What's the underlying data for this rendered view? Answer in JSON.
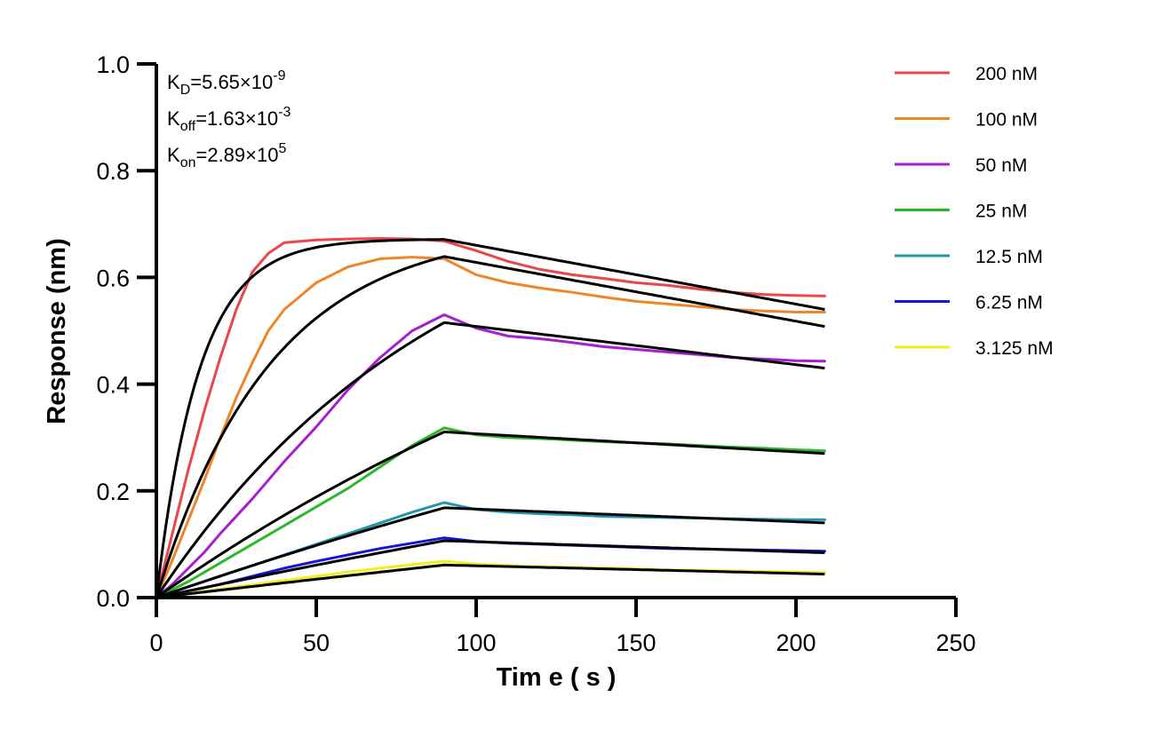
{
  "chart_data": {
    "type": "line",
    "title": "",
    "xlabel": "Tim e ( s )",
    "ylabel": "Response (nm)",
    "xlim": [
      0,
      250
    ],
    "ylim": [
      0,
      1.0
    ],
    "xticks": [
      "0",
      "50",
      "100",
      "150",
      "200",
      "250"
    ],
    "yticks": [
      "0.0",
      "0.2",
      "0.4",
      "0.6",
      "0.8",
      "1.0"
    ],
    "grid": false,
    "legend_position": "top-right",
    "association_end_time": 90,
    "end_time": 209,
    "kinetics": [
      {
        "id": "kd",
        "base": "K",
        "sub": "D",
        "main": "=5.65×10",
        "sup": "-9"
      },
      {
        "id": "koff",
        "base": "K",
        "sub": "off",
        "main": "=1.63×10",
        "sup": "-3"
      },
      {
        "id": "kon",
        "base": "K",
        "sub": "on",
        "main": "=2.89×10",
        "sup": "5"
      }
    ],
    "series": [
      {
        "name": "200 nM",
        "color": "#E8474C",
        "fit_plateau": 0.672,
        "fit_k": 0.075,
        "fit_end": 0.54,
        "points": [
          [
            0,
            0
          ],
          [
            5,
            0.12
          ],
          [
            10,
            0.24
          ],
          [
            15,
            0.35
          ],
          [
            20,
            0.45
          ],
          [
            25,
            0.54
          ],
          [
            30,
            0.61
          ],
          [
            35,
            0.645
          ],
          [
            40,
            0.665
          ],
          [
            50,
            0.67
          ],
          [
            60,
            0.672
          ],
          [
            70,
            0.673
          ],
          [
            80,
            0.672
          ],
          [
            90,
            0.668
          ],
          [
            100,
            0.65
          ],
          [
            110,
            0.63
          ],
          [
            120,
            0.615
          ],
          [
            130,
            0.605
          ],
          [
            140,
            0.598
          ],
          [
            150,
            0.59
          ],
          [
            160,
            0.585
          ],
          [
            170,
            0.578
          ],
          [
            180,
            0.572
          ],
          [
            190,
            0.568
          ],
          [
            200,
            0.566
          ],
          [
            209,
            0.565
          ]
        ]
      },
      {
        "name": "100 nM",
        "color": "#F0842A",
        "fit_plateau": 0.695,
        "fit_k": 0.028,
        "fit_end": 0.508,
        "points": [
          [
            0,
            0
          ],
          [
            5,
            0.07
          ],
          [
            10,
            0.145
          ],
          [
            15,
            0.22
          ],
          [
            20,
            0.3
          ],
          [
            25,
            0.375
          ],
          [
            30,
            0.44
          ],
          [
            35,
            0.5
          ],
          [
            40,
            0.54
          ],
          [
            50,
            0.59
          ],
          [
            60,
            0.62
          ],
          [
            70,
            0.635
          ],
          [
            80,
            0.638
          ],
          [
            90,
            0.635
          ],
          [
            100,
            0.605
          ],
          [
            110,
            0.59
          ],
          [
            120,
            0.58
          ],
          [
            130,
            0.572
          ],
          [
            140,
            0.563
          ],
          [
            150,
            0.555
          ],
          [
            160,
            0.55
          ],
          [
            170,
            0.545
          ],
          [
            180,
            0.54
          ],
          [
            190,
            0.537
          ],
          [
            200,
            0.535
          ],
          [
            209,
            0.535
          ]
        ]
      },
      {
        "name": "50 nM",
        "color": "#A71FCF",
        "fit_plateau": 0.82,
        "fit_k": 0.011,
        "fit_end": 0.43,
        "points": [
          [
            0,
            0
          ],
          [
            5,
            0.025
          ],
          [
            10,
            0.055
          ],
          [
            15,
            0.085
          ],
          [
            20,
            0.12
          ],
          [
            30,
            0.185
          ],
          [
            40,
            0.255
          ],
          [
            50,
            0.32
          ],
          [
            60,
            0.39
          ],
          [
            70,
            0.45
          ],
          [
            80,
            0.5
          ],
          [
            90,
            0.53
          ],
          [
            100,
            0.505
          ],
          [
            110,
            0.49
          ],
          [
            120,
            0.485
          ],
          [
            130,
            0.478
          ],
          [
            140,
            0.47
          ],
          [
            150,
            0.465
          ],
          [
            160,
            0.46
          ],
          [
            170,
            0.455
          ],
          [
            180,
            0.45
          ],
          [
            190,
            0.447
          ],
          [
            200,
            0.444
          ],
          [
            209,
            0.443
          ]
        ]
      },
      {
        "name": "25 nM",
        "color": "#2DB82A",
        "fit_plateau": 0.9,
        "fit_k": 0.0047,
        "fit_end": 0.27,
        "points": [
          [
            0,
            0
          ],
          [
            10,
            0.03
          ],
          [
            20,
            0.065
          ],
          [
            30,
            0.1
          ],
          [
            40,
            0.135
          ],
          [
            50,
            0.17
          ],
          [
            60,
            0.205
          ],
          [
            70,
            0.245
          ],
          [
            80,
            0.285
          ],
          [
            90,
            0.318
          ],
          [
            100,
            0.305
          ],
          [
            110,
            0.3
          ],
          [
            120,
            0.298
          ],
          [
            130,
            0.295
          ],
          [
            140,
            0.292
          ],
          [
            150,
            0.29
          ],
          [
            160,
            0.288
          ],
          [
            170,
            0.285
          ],
          [
            180,
            0.282
          ],
          [
            190,
            0.28
          ],
          [
            200,
            0.277
          ],
          [
            209,
            0.275
          ]
        ]
      },
      {
        "name": "12.5 nM",
        "color": "#2196AE",
        "fit_plateau": 0.9,
        "fit_k": 0.0023,
        "fit_end": 0.14,
        "points": [
          [
            0,
            0
          ],
          [
            10,
            0.02
          ],
          [
            20,
            0.04
          ],
          [
            30,
            0.06
          ],
          [
            40,
            0.08
          ],
          [
            50,
            0.1
          ],
          [
            60,
            0.12
          ],
          [
            70,
            0.14
          ],
          [
            80,
            0.16
          ],
          [
            90,
            0.178
          ],
          [
            100,
            0.165
          ],
          [
            110,
            0.16
          ],
          [
            120,
            0.157
          ],
          [
            130,
            0.155
          ],
          [
            140,
            0.152
          ],
          [
            150,
            0.151
          ],
          [
            160,
            0.15
          ],
          [
            170,
            0.149
          ],
          [
            180,
            0.148
          ],
          [
            190,
            0.147
          ],
          [
            200,
            0.146
          ],
          [
            209,
            0.146
          ]
        ]
      },
      {
        "name": "6.25 nM",
        "color": "#1515D6",
        "fit_plateau": 0.9,
        "fit_k": 0.0014,
        "fit_end": 0.084,
        "points": [
          [
            0,
            0
          ],
          [
            10,
            0.012
          ],
          [
            20,
            0.025
          ],
          [
            30,
            0.04
          ],
          [
            40,
            0.055
          ],
          [
            50,
            0.068
          ],
          [
            60,
            0.08
          ],
          [
            70,
            0.092
          ],
          [
            80,
            0.102
          ],
          [
            90,
            0.112
          ],
          [
            100,
            0.105
          ],
          [
            110,
            0.102
          ],
          [
            120,
            0.1
          ],
          [
            130,
            0.098
          ],
          [
            140,
            0.096
          ],
          [
            150,
            0.094
          ],
          [
            160,
            0.092
          ],
          [
            170,
            0.091
          ],
          [
            180,
            0.09
          ],
          [
            190,
            0.089
          ],
          [
            200,
            0.088
          ],
          [
            209,
            0.087
          ]
        ]
      },
      {
        "name": "3.125 nM",
        "color": "#F3EE1B",
        "fit_plateau": 0.9,
        "fit_k": 0.00078,
        "fit_end": 0.044,
        "points": [
          [
            0,
            0
          ],
          [
            10,
            0.008
          ],
          [
            20,
            0.016
          ],
          [
            30,
            0.024
          ],
          [
            40,
            0.032
          ],
          [
            50,
            0.04
          ],
          [
            60,
            0.048
          ],
          [
            70,
            0.055
          ],
          [
            80,
            0.062
          ],
          [
            90,
            0.068
          ],
          [
            100,
            0.063
          ],
          [
            110,
            0.06
          ],
          [
            120,
            0.058
          ],
          [
            130,
            0.057
          ],
          [
            140,
            0.055
          ],
          [
            150,
            0.054
          ],
          [
            160,
            0.052
          ],
          [
            170,
            0.051
          ],
          [
            180,
            0.05
          ],
          [
            190,
            0.049
          ],
          [
            200,
            0.048
          ],
          [
            209,
            0.047
          ]
        ]
      }
    ]
  }
}
